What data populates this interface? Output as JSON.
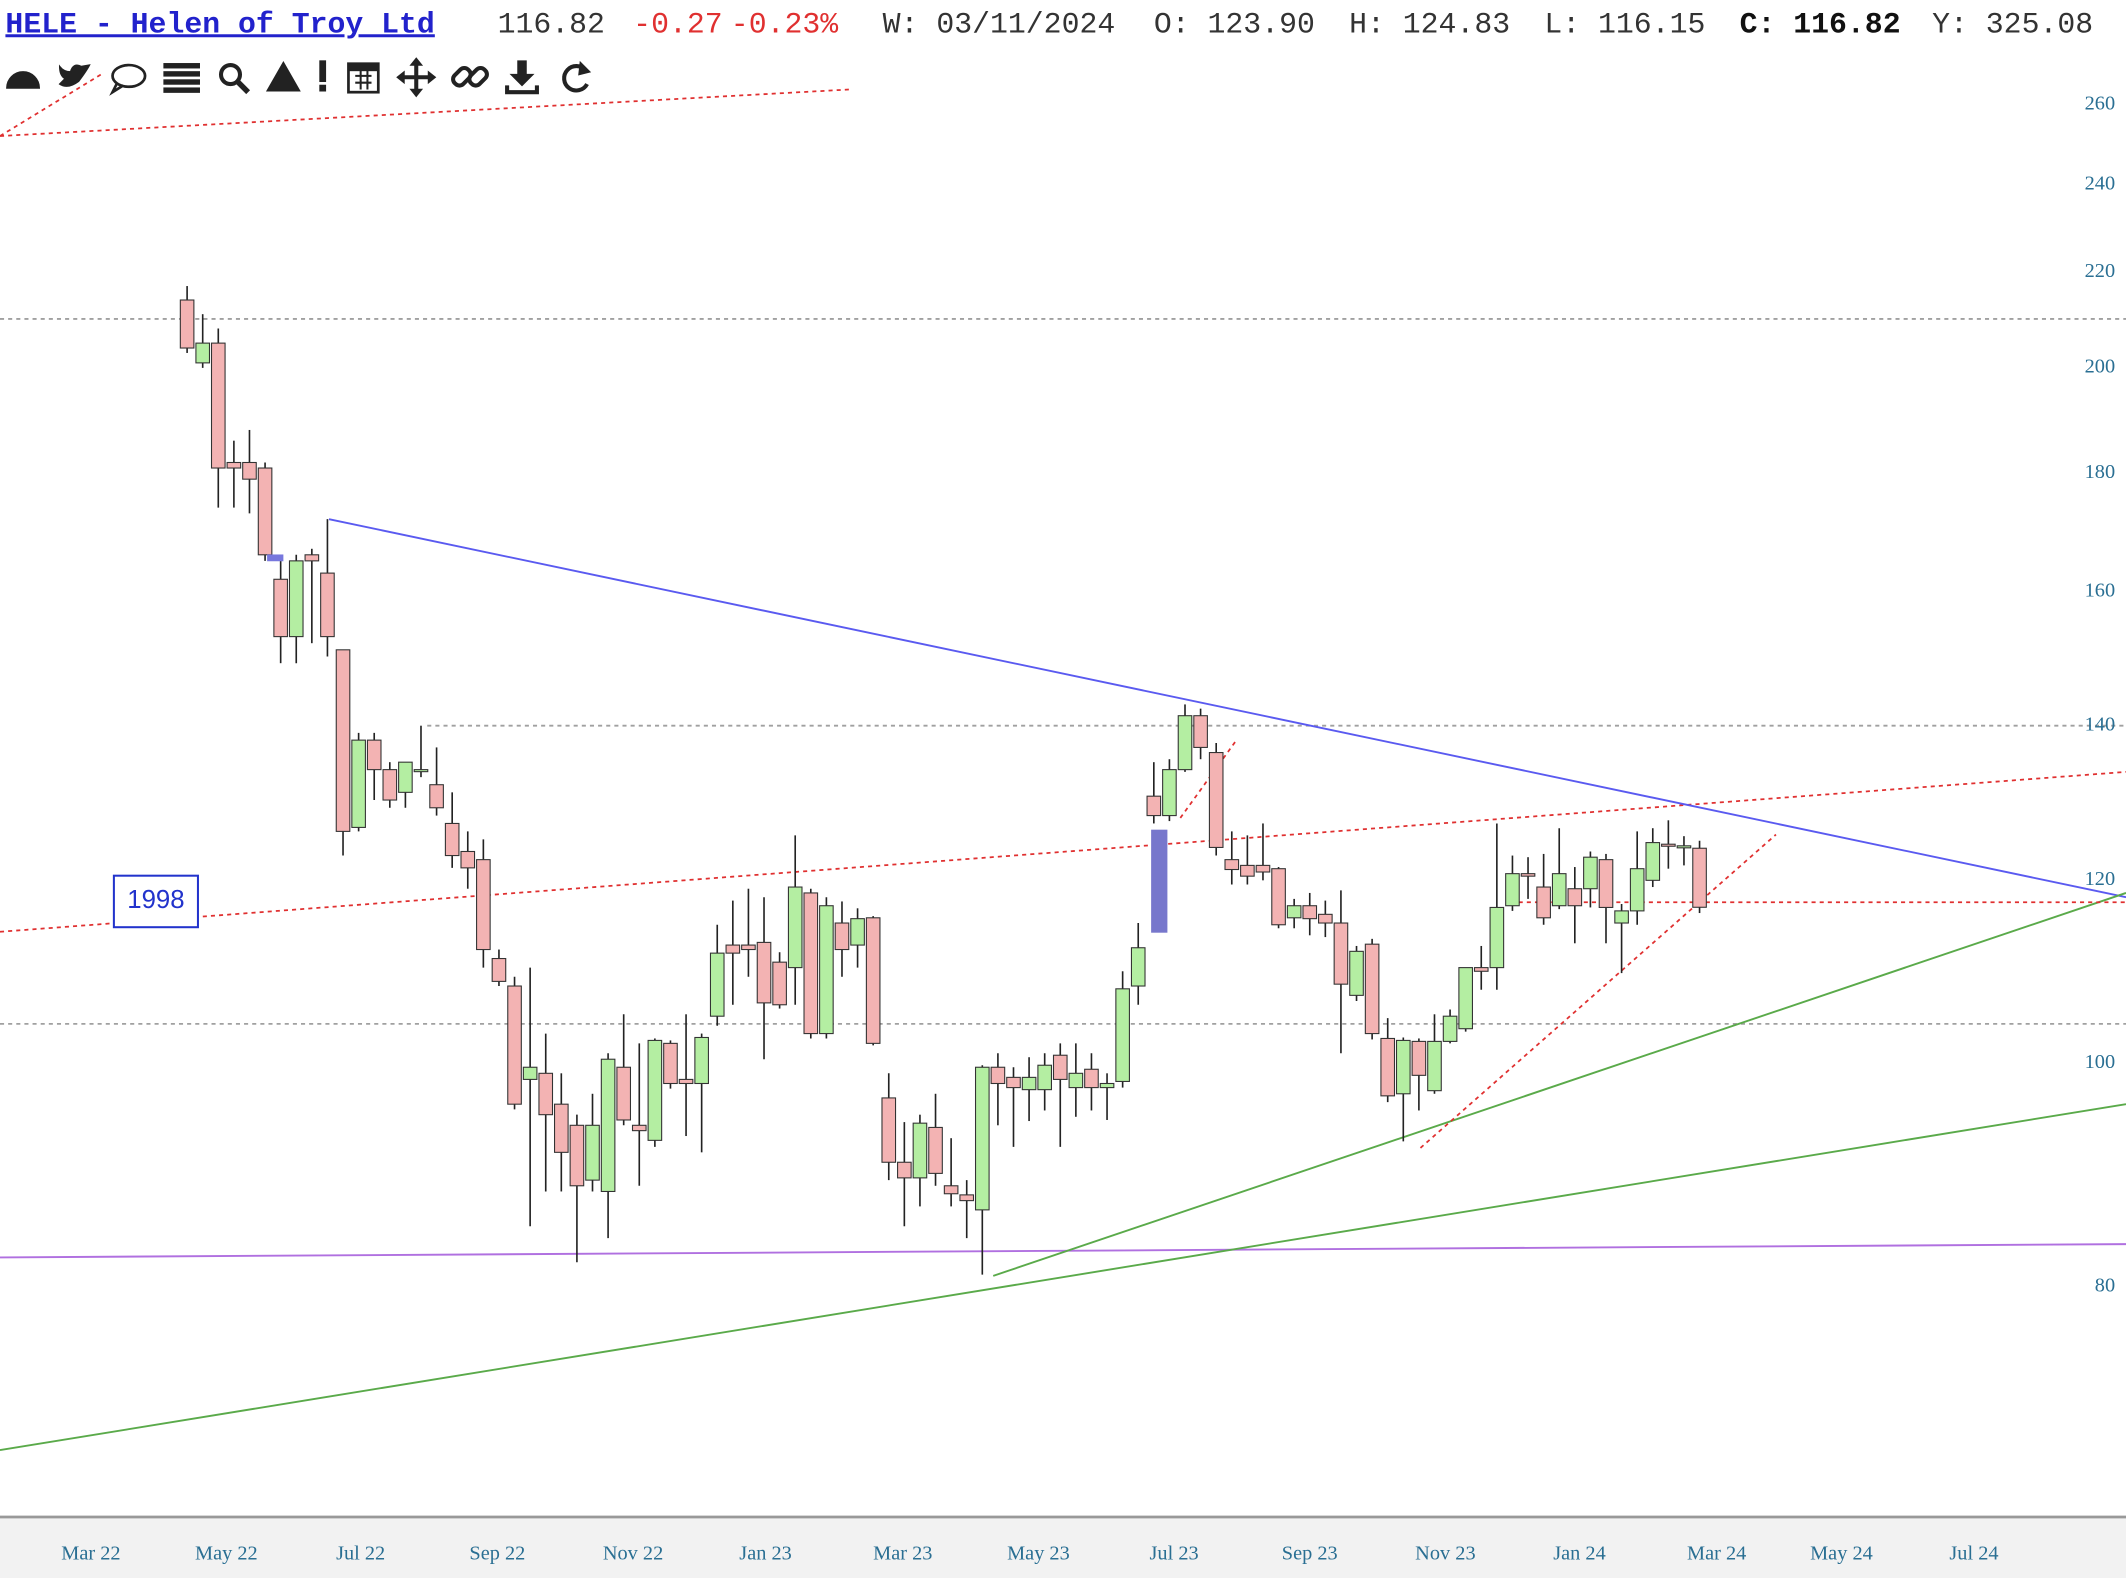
{
  "header": {
    "symbol": "HELE - Helen of Troy Ltd",
    "last": "116.82",
    "change": "-0.27",
    "change_pct": "-0.23%",
    "week": "W: 03/11/2024",
    "open": "O: 123.90",
    "high": "H: 124.83",
    "low": "L: 116.15",
    "close": "C: 116.82",
    "ytd": "Y: 325.08"
  },
  "chart_data": {
    "type": "candlestick",
    "log_scale": true,
    "up_color": "#b4eea2",
    "down_color": "#f3b3b3",
    "open": [
      214,
      201,
      205,
      182,
      182,
      181,
      162,
      153,
      166,
      163,
      151,
      126.5,
      138,
      134,
      131,
      134,
      132,
      127,
      123.5,
      122.5,
      111,
      108,
      98.4,
      99,
      96,
      94,
      89,
      88,
      99.6,
      94,
      92.6,
      102,
      98.4,
      98,
      104.8,
      112.5,
      112.5,
      112.8,
      110.6,
      110,
      118.5,
      103,
      115,
      112.5,
      115.6,
      96.6,
      90.6,
      89.2,
      93.8,
      88.5,
      87.7,
      86.4,
      99.6,
      98.6,
      97.4,
      97.4,
      100.8,
      97.6,
      99.4,
      97.6,
      98.2,
      108,
      130.5,
      128,
      134,
      141.4,
      136.3,
      122.5,
      121.8,
      121.8,
      121.4,
      115.6,
      117,
      116,
      115,
      107,
      112.6,
      102.5,
      97,
      102.2,
      97.3,
      102.2,
      103.5,
      110,
      110,
      117,
      120.8,
      119.2,
      117,
      119,
      119,
      122.5,
      115,
      116.4,
      120,
      124.4,
      124.2,
      123.9
    ],
    "high": [
      217,
      211,
      208,
      186,
      188,
      182,
      165,
      166,
      167,
      172,
      151,
      139,
      139,
      135,
      135,
      140,
      137,
      131,
      126,
      125,
      112,
      109,
      110,
      103,
      99,
      95,
      97,
      101,
      105,
      102,
      102.5,
      102.3,
      105,
      103,
      114.8,
      117.6,
      119,
      118,
      111.7,
      125.5,
      119,
      118,
      117.5,
      116.7,
      115.8,
      99,
      94.3,
      95,
      97,
      92.8,
      89,
      99.8,
      101,
      99.6,
      100.6,
      101,
      102,
      102,
      101,
      99,
      109.6,
      115,
      135,
      135.4,
      143,
      142.4,
      137.6,
      126,
      125.5,
      127,
      121.6,
      117.8,
      118.5,
      117.6,
      118.8,
      112.4,
      113.2,
      104.6,
      102.6,
      102.5,
      105,
      105.5,
      110,
      112.4,
      127,
      123,
      122.8,
      123.2,
      126.4,
      121.6,
      123.5,
      123.2,
      117.2,
      126,
      126.4,
      127.4,
      125.4,
      124.83
    ],
    "low": [
      203,
      200,
      174,
      174,
      173,
      165,
      149,
      149,
      152,
      150,
      123,
      126,
      130,
      129,
      129,
      133,
      128,
      121.5,
      119,
      110,
      108,
      95.5,
      85,
      88,
      88,
      82,
      88,
      84,
      94,
      88.5,
      92,
      97.5,
      93,
      91.5,
      103.8,
      106,
      109,
      100.4,
      105.6,
      106,
      102.5,
      102.5,
      109,
      110,
      101.8,
      89,
      85,
      86.7,
      88.5,
      86.7,
      84,
      81,
      94,
      92,
      94.4,
      95.4,
      92,
      94.8,
      95.4,
      94.5,
      97.6,
      106,
      127,
      127.3,
      133.7,
      135.4,
      123,
      119.5,
      119.5,
      120,
      114.4,
      114.4,
      113.6,
      113.4,
      101,
      106.4,
      102.4,
      96.2,
      92.5,
      95.4,
      97,
      102,
      103.2,
      107.6,
      107.6,
      116.4,
      117.8,
      114.8,
      116.6,
      112.7,
      116.8,
      112.7,
      109.4,
      114.8,
      119.2,
      121.4,
      121.8,
      116.15
    ],
    "close": [
      204,
      205,
      181,
      181,
      179,
      166,
      153,
      165,
      165,
      153,
      126,
      138,
      134,
      130,
      135,
      134,
      129,
      123,
      121.5,
      112,
      108.5,
      96,
      99.6,
      95,
      91.5,
      88.5,
      94,
      100.4,
      94.5,
      93.5,
      102.3,
      98,
      98,
      102.6,
      111.6,
      111.6,
      112,
      106.2,
      106,
      119.2,
      103,
      117,
      112,
      115.5,
      102,
      90.6,
      89.2,
      94.2,
      89.6,
      87.8,
      87.2,
      99.6,
      98,
      97.6,
      98.6,
      99.8,
      98.4,
      99,
      97.6,
      98,
      107.7,
      112.2,
      128,
      134,
      141.4,
      137,
      124,
      121.3,
      120.5,
      121,
      114.8,
      117,
      115.5,
      115,
      108.2,
      111.8,
      103,
      96.8,
      102.3,
      98.8,
      102.2,
      104.8,
      110,
      109.6,
      116.8,
      120.8,
      120.5,
      115.6,
      120.8,
      117,
      122.8,
      116.8,
      116.4,
      121.4,
      124.6,
      124.2,
      124.2,
      116.82
    ],
    "xlim": [
      -12,
      124.35
    ],
    "xticks": [
      {
        "value": -6.17,
        "label": "Mar 22"
      },
      {
        "value": 2.52,
        "label": "May 22"
      },
      {
        "value": 11.13,
        "label": "Jul 22"
      },
      {
        "value": 19.9,
        "label": "Sep 22"
      },
      {
        "value": 28.6,
        "label": "Nov 22"
      },
      {
        "value": 37.1,
        "label": "Jan 23"
      },
      {
        "value": 45.9,
        "label": "Mar 23"
      },
      {
        "value": 54.6,
        "label": "May 23"
      },
      {
        "value": 63.3,
        "label": "Jul 23"
      },
      {
        "value": 72,
        "label": "Sep 23"
      },
      {
        "value": 80.7,
        "label": "Nov 23"
      },
      {
        "value": 89.3,
        "label": "Jan 24"
      },
      {
        "value": 98.1,
        "label": "Mar 24"
      },
      {
        "value": 106.1,
        "label": "May 24"
      },
      {
        "value": 114.6,
        "label": "Jul 24"
      }
    ],
    "ylim": [
      63.7,
      288.6
    ],
    "yticks": [
      80,
      100,
      120,
      140,
      160,
      180,
      200,
      220,
      240,
      260
    ],
    "lines": [
      {
        "from": [
          -12,
          210
        ],
        "to": [
          124.35,
          210
        ],
        "color": "#a0a0a0",
        "dash": true
      },
      {
        "from": [
          15.4,
          140
        ],
        "to": [
          124.35,
          140
        ],
        "color": "#a0a0a0",
        "dash": true
      },
      {
        "from": [
          -12,
          104
        ],
        "to": [
          124.35,
          104
        ],
        "color": "#a0a0a0",
        "dash": true
      },
      {
        "from": [
          -12,
          252
        ],
        "to": [
          42.6,
          264
        ],
        "color": "#e03030",
        "dash": true
      },
      {
        "from": [
          -12,
          252
        ],
        "to": [
          -5.5,
          268
        ],
        "color": "#e03030",
        "dash": true
      },
      {
        "from": [
          -12,
          114
        ],
        "to": [
          124.35,
          133.7
        ],
        "color": "#e03030",
        "dash": true
      },
      {
        "from": [
          9.1,
          172
        ],
        "to": [
          124.35,
          118
        ],
        "color": "#5a5af0",
        "dash": false
      },
      {
        "from": [
          -12,
          82.4
        ],
        "to": [
          124.35,
          83.5
        ],
        "color": "#b070e0",
        "dash": false
      },
      {
        "from": [
          51.7,
          80.9
        ],
        "to": [
          124.35,
          118.5
        ],
        "color": "#5aaa4a",
        "dash": false
      },
      {
        "from": [
          -12,
          68
        ],
        "to": [
          124.35,
          96
        ],
        "color": "#5aaa4a",
        "dash": false
      },
      {
        "from": [
          79.1,
          91.9
        ],
        "to": [
          101.9,
          125.6
        ],
        "color": "#e03030",
        "dash": true
      },
      {
        "from": [
          63.7,
          127.7
        ],
        "to": [
          67.3,
          138
        ],
        "color": "#e03030",
        "dash": true
      },
      {
        "from": [
          85.4,
          117.4
        ],
        "to": [
          124.35,
          117.4
        ],
        "color": "#e03030",
        "dash": true
      }
    ],
    "annotations": [
      {
        "text": "1998",
        "at": [
          -2,
          117.5
        ]
      }
    ]
  }
}
